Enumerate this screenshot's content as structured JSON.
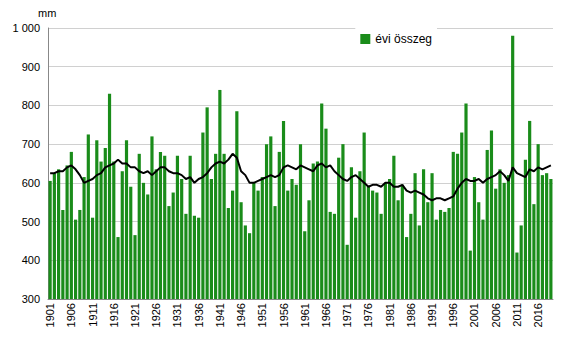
{
  "chart_data": {
    "type": "bar",
    "y_label": "mm",
    "categories": [
      "1901",
      null,
      null,
      null,
      null,
      "1906",
      null,
      null,
      null,
      null,
      "1911",
      null,
      null,
      null,
      null,
      "1916",
      null,
      null,
      null,
      null,
      "1921",
      null,
      null,
      null,
      null,
      "1926",
      null,
      null,
      null,
      null,
      "1931",
      null,
      null,
      null,
      null,
      "1936",
      null,
      null,
      null,
      null,
      "1941",
      null,
      null,
      null,
      null,
      "1946",
      null,
      null,
      null,
      null,
      "1951",
      null,
      null,
      null,
      null,
      "1956",
      null,
      null,
      null,
      null,
      "1961",
      null,
      null,
      null,
      null,
      "1966",
      null,
      null,
      null,
      null,
      "1971",
      null,
      null,
      null,
      null,
      "1976",
      null,
      null,
      null,
      null,
      "1981",
      null,
      null,
      null,
      null,
      "1986",
      null,
      null,
      null,
      null,
      "1991",
      null,
      null,
      null,
      null,
      "1996",
      null,
      null,
      null,
      null,
      "2001",
      null,
      null,
      null,
      null,
      "2006",
      null,
      null,
      null,
      null,
      "2011",
      null,
      null,
      null,
      null,
      "2016",
      null,
      null,
      null
    ],
    "series": [
      {
        "name": "évi összeg",
        "type": "bar",
        "color": "#1a8c1a",
        "values": [
          605,
          625,
          635,
          530,
          645,
          680,
          505,
          530,
          615,
          725,
          510,
          710,
          655,
          690,
          830,
          655,
          460,
          630,
          710,
          590,
          465,
          675,
          600,
          570,
          720,
          635,
          680,
          670,
          540,
          575,
          670,
          610,
          520,
          670,
          515,
          510,
          730,
          795,
          610,
          675,
          840,
          675,
          535,
          580,
          785,
          550,
          490,
          470,
          600,
          580,
          615,
          700,
          720,
          540,
          680,
          760,
          580,
          610,
          595,
          700,
          475,
          555,
          650,
          655,
          805,
          740,
          525,
          520,
          665,
          700,
          440,
          640,
          510,
          630,
          730,
          590,
          580,
          575,
          520,
          600,
          610,
          670,
          555,
          595,
          460,
          520,
          625,
          490,
          635,
          550,
          625,
          505,
          530,
          525,
          535,
          680,
          675,
          730,
          805,
          425,
          615,
          550,
          505,
          685,
          735,
          585,
          635,
          600,
          620,
          980,
          420,
          490,
          660,
          760,
          545,
          700,
          620,
          625,
          610
        ]
      },
      {
        "type": "line",
        "color": "#000000",
        "values": [
          625,
          625,
          630,
          630,
          640,
          645,
          635,
          620,
          600,
          605,
          610,
          620,
          625,
          640,
          645,
          650,
          660,
          650,
          650,
          640,
          640,
          630,
          625,
          630,
          620,
          630,
          640,
          640,
          630,
          625,
          625,
          620,
          610,
          615,
          600,
          610,
          615,
          625,
          640,
          650,
          655,
          650,
          660,
          675,
          665,
          630,
          620,
          600,
          600,
          605,
          610,
          615,
          620,
          615,
          620,
          640,
          645,
          640,
          635,
          645,
          640,
          635,
          630,
          645,
          650,
          640,
          645,
          630,
          620,
          610,
          605,
          615,
          620,
          610,
          600,
          590,
          595,
          595,
          590,
          600,
          600,
          590,
          590,
          595,
          580,
          575,
          580,
          575,
          570,
          560,
          555,
          560,
          560,
          555,
          560,
          565,
          585,
          600,
          610,
          605,
          605,
          610,
          600,
          610,
          615,
          620,
          630,
          620,
          605,
          640,
          625,
          620,
          615,
          635,
          630,
          640,
          635,
          640,
          645
        ]
      }
    ],
    "ylim": [
      300,
      1000
    ],
    "yticks": [
      300,
      400,
      500,
      600,
      700,
      800,
      900,
      {
        "value": 1000,
        "label": "1 000"
      }
    ],
    "grid": true,
    "legend": "top-right"
  }
}
